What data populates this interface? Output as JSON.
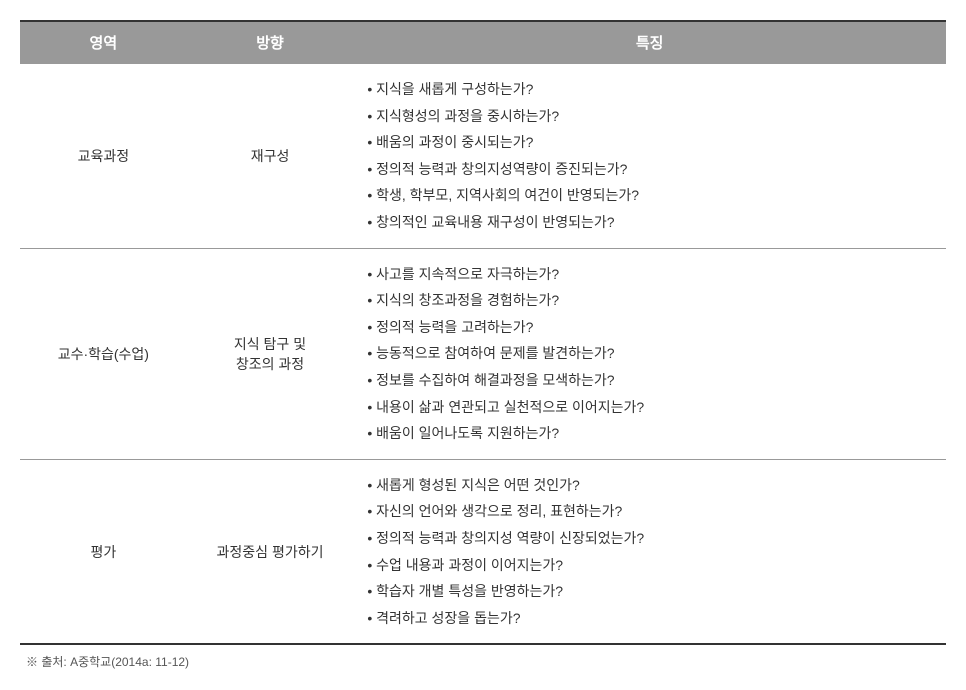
{
  "headers": {
    "col1": "영역",
    "col2": "방향",
    "col3": "특징"
  },
  "rows": [
    {
      "area": "교육과정",
      "direction": "재구성",
      "items": [
        "지식을 새롭게 구성하는가?",
        "지식형성의 과정을 중시하는가?",
        "배움의 과정이 중시되는가?",
        "정의적 능력과 창의지성역량이 증진되는가?",
        "학생, 학부모, 지역사회의 여건이 반영되는가?",
        "창의적인 교육내용 재구성이 반영되는가?"
      ]
    },
    {
      "area": "교수·학습(수업)",
      "direction": "지식 탐구 및\n창조의 과정",
      "items": [
        "사고를 지속적으로 자극하는가?",
        "지식의 창조과정을 경험하는가?",
        "정의적 능력을 고려하는가?",
        "능동적으로 참여하여 문제를 발견하는가?",
        "정보를 수집하여 해결과정을 모색하는가?",
        "내용이 삶과 연관되고 실천적으로 이어지는가?",
        "배움이 일어나도록 지원하는가?"
      ]
    },
    {
      "area": "평가",
      "direction": "과정중심 평가하기",
      "items": [
        "새롭게 형성된 지식은 어떤 것인가?",
        "자신의 언어와 생각으로 정리, 표현하는가?",
        "정의적 능력과 창의지성 역량이 신장되었는가?",
        "수업 내용과 과정이 이어지는가?",
        "학습자 개별 특성을 반영하는가?",
        "격려하고 성장을 돕는가?"
      ]
    }
  ],
  "footnote": "※ 출처: A중학교(2014a: 11-12)",
  "styles": {
    "header_bg": "#999999",
    "header_fg": "#ffffff",
    "border_color": "#999999",
    "outer_border_color": "#333333",
    "font_size_header": 15,
    "font_size_body": 14,
    "font_size_footnote": 12,
    "bullet": "•"
  }
}
